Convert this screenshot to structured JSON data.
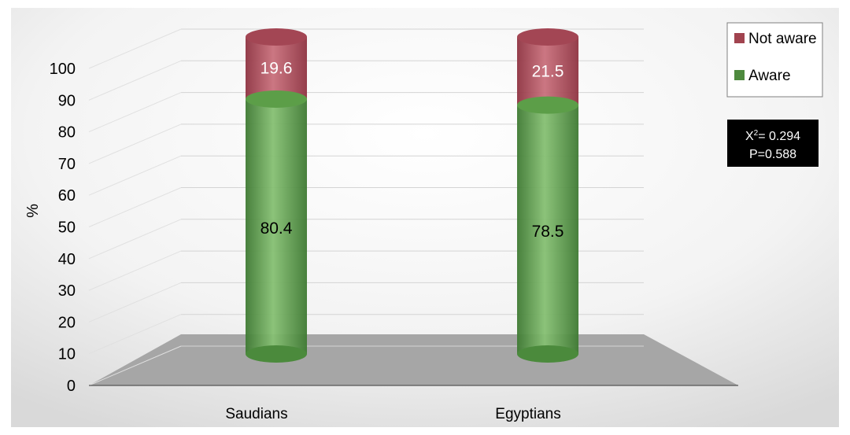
{
  "chart_data": {
    "type": "bar",
    "stacked": true,
    "three_d": true,
    "categories": [
      "Saudians",
      "Egyptians"
    ],
    "series": [
      {
        "name": "Aware",
        "values": [
          80.4,
          78.5
        ],
        "color": "#4e8a3e"
      },
      {
        "name": "Not aware",
        "values": [
          19.6,
          21.5
        ],
        "color": "#a1434f"
      }
    ],
    "ylabel": "%",
    "ylim": [
      0,
      100
    ],
    "yticks": [
      0,
      10,
      20,
      30,
      40,
      50,
      60,
      70,
      80,
      90,
      100
    ],
    "grid": true,
    "legend_position": "top-right",
    "legend_order": [
      "Not aware",
      "Aware"
    ],
    "annotation": {
      "line1_prefix": "X",
      "line1_sup": "2",
      "line1_suffix": "= 0.294",
      "line2": "P=0.588"
    }
  }
}
